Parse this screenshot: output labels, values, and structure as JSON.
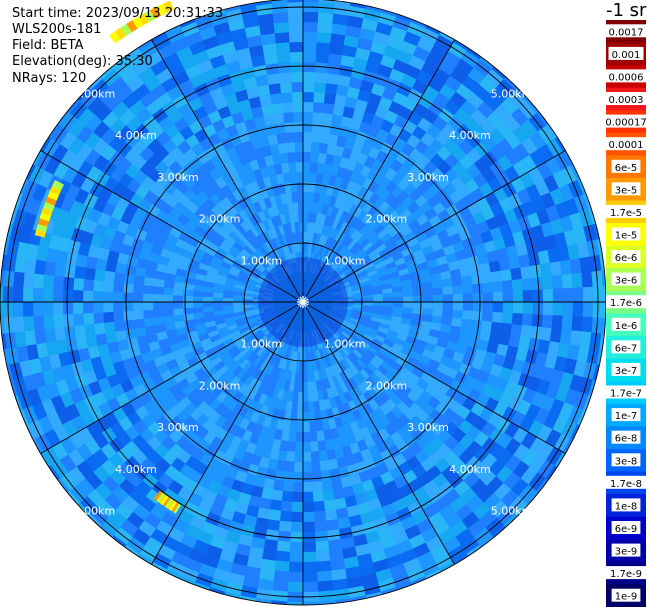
{
  "header": {
    "start_time": "Start time: 2023/09/13 20:31:33",
    "instrument": "WLS200s-181",
    "field": "Field: BETA",
    "elevation": "Elevation(deg): 35.30",
    "nrays": "NRays: 120"
  },
  "unit_label": "-1 sr",
  "chart_data": {
    "type": "heatmap",
    "projection": "polar (PPI scan)",
    "field": "BETA",
    "elevation_deg": 35.3,
    "n_rays": 120,
    "range_rings_km": [
      1,
      2,
      3,
      4,
      5
    ],
    "range_ring_labels": [
      "1.00km",
      "2.00km",
      "3.00km",
      "4.00km",
      "5.00km"
    ],
    "azimuth_spokes_deg": [
      0,
      30,
      60,
      90,
      120,
      150,
      180,
      210,
      240,
      270,
      300,
      330
    ],
    "colorbar": {
      "labels": [
        "0.0017",
        "0.001",
        "0.0006",
        "0.0003",
        "0.00017",
        "0.0001",
        "6e-5",
        "3e-5",
        "1.7e-5",
        "1e-5",
        "6e-6",
        "3e-6",
        "1.7e-6",
        "1e-6",
        "6e-7",
        "3e-7",
        "1.7e-7",
        "1e-7",
        "6e-8",
        "3e-8",
        "1.7e-8",
        "1e-8",
        "6e-9",
        "3e-9",
        "1.7e-9",
        "1e-9"
      ],
      "colors": [
        "#800000",
        "#a00000",
        "#c80000",
        "#f01818",
        "#ff3300",
        "#ff5500",
        "#ff7700",
        "#ff9900",
        "#ffcc00",
        "#ffff00",
        "#ddff22",
        "#aaff55",
        "#77ff88",
        "#44ffbb",
        "#22eedd",
        "#00ddee",
        "#00ccff",
        "#00aaff",
        "#0088ff",
        "#0066ff",
        "#0044ee",
        "#0022dd",
        "#0000cc",
        "#0000aa",
        "#000088",
        "#000066"
      ]
    },
    "typical_value": "1e-7 to 6e-8",
    "high_value_features": [
      {
        "azimuth_deg": -30,
        "range_km": 5.5,
        "value": "1e-5 to 1.7e-6"
      },
      {
        "azimuth_deg": -70,
        "range_km": 4.6,
        "value": "1e-5 to 3e-6"
      },
      {
        "azimuth_deg": -146,
        "range_km": 4.1,
        "value": "6e-6 to 3e-7"
      }
    ]
  }
}
